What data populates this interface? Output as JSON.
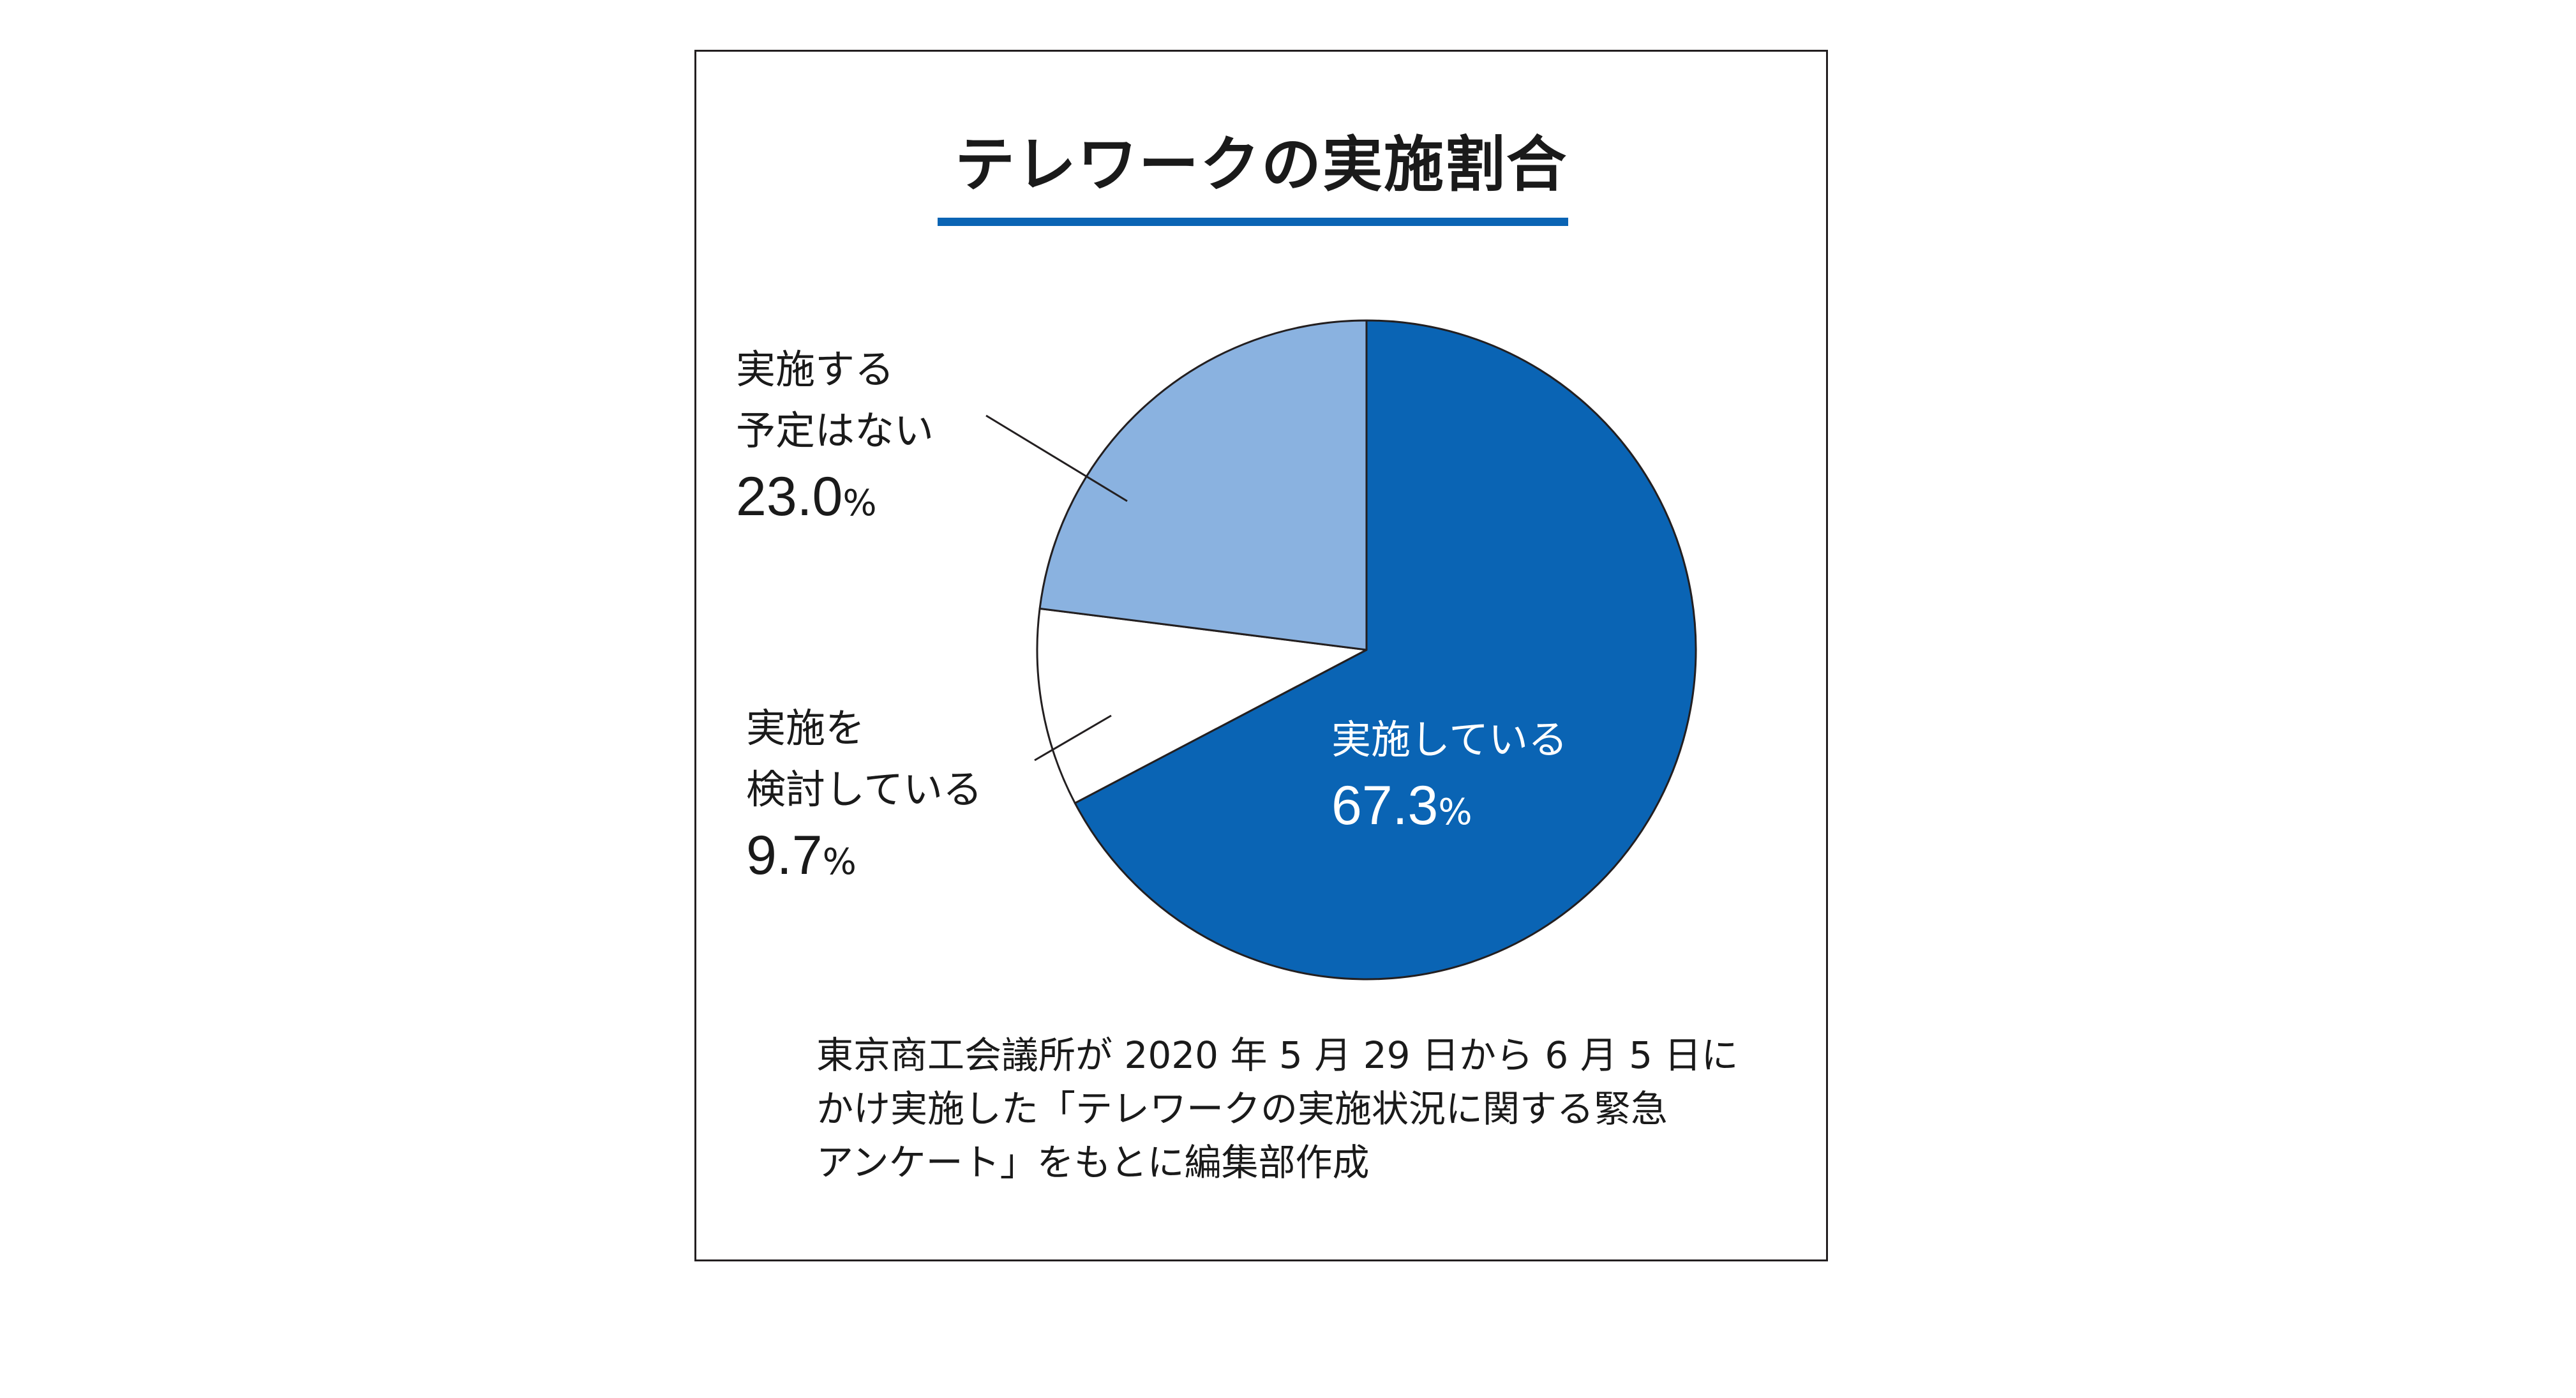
{
  "chart_data": {
    "type": "pie",
    "title": "テレワークの実施割合",
    "slices": [
      {
        "label_lines": [
          "実施している"
        ],
        "value": 67.3,
        "display": "67.3",
        "unit": "%",
        "color": "#0a64b4"
      },
      {
        "label_lines": [
          "実施を",
          "検討している"
        ],
        "value": 9.7,
        "display": "9.7",
        "unit": "%",
        "color": "#ffffff"
      },
      {
        "label_lines": [
          "実施する",
          "予定はない"
        ],
        "value": 23.0,
        "display": "23.0",
        "unit": "%",
        "color": "#8ab2e0"
      }
    ],
    "note_lines": [
      "東京商工会議所が 2020 年 5 月 29 日から 6 月 5 日に",
      "かけ実施した「テレワークの実施状況に関する緊急",
      "アンケート」をもとに編集部作成"
    ]
  },
  "colors": {
    "accent": "#0a64b4",
    "light": "#8ab2e0",
    "outline": "#231f20"
  }
}
